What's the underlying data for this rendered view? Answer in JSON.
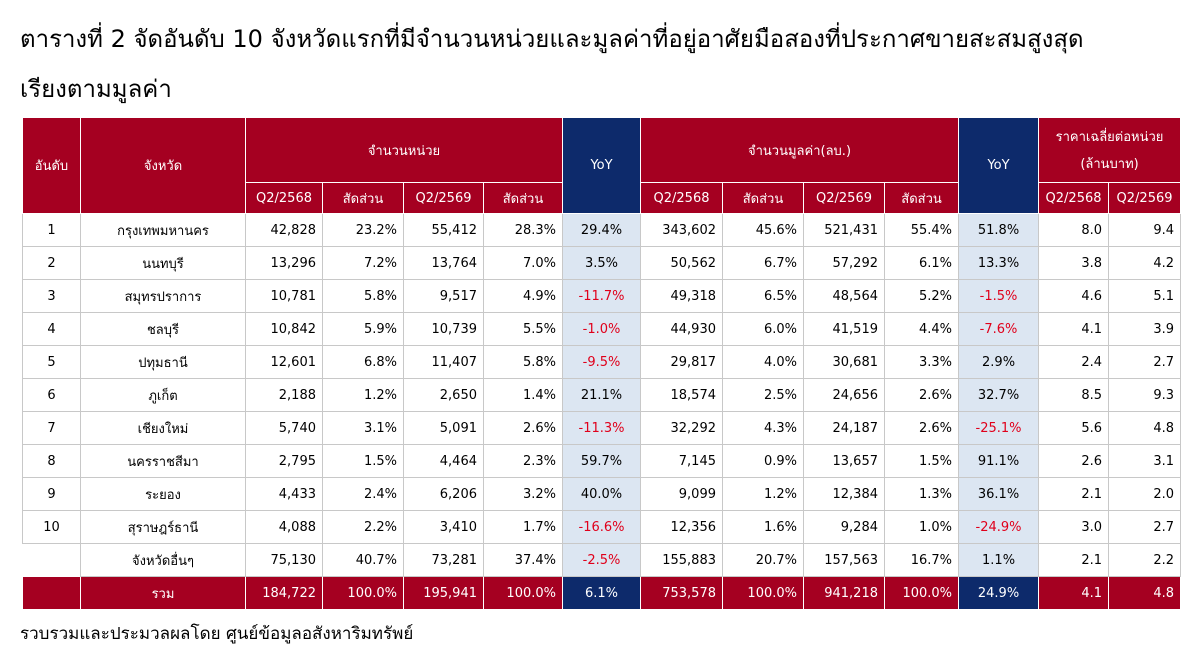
{
  "title_line1": "ตารางที่ 2 จัดอันดับ 10 จังหวัดแรกที่มีจำนวนหน่วยและมูลค่าที่อยู่อาศัยมือสองที่ประกาศขายสะสมสูงสุด",
  "title_line2": "เรียงตามมูลค่า",
  "table": {
    "header": {
      "rank": "อันดับ",
      "province": "จังหวัด",
      "units": "จำนวนหน่วย",
      "units_yoy": "YoY",
      "value": "จำนวนมูลค่า(ลบ.)",
      "value_yoy": "YoY",
      "price": [
        "ราคาเฉลี่ยต่อหน่วย",
        "(ล้านบาท)"
      ]
    },
    "subheader": [
      "Q2/2568",
      "สัดส่วน",
      "Q2/2569",
      "สัดส่วน",
      "Q2/2568",
      "สัดส่วน",
      "Q2/2569",
      "สัดส่วน",
      "Q2/2568",
      "Q2/2569"
    ],
    "rows": [
      [
        "1",
        "กรุงเทพมหานคร",
        "42,828",
        "23.2%",
        "55,412",
        "28.3%",
        "29.4%",
        "343,602",
        "45.6%",
        "521,431",
        "55.4%",
        "51.8%",
        "8.0",
        "9.4"
      ],
      [
        "2",
        "นนทบุรี",
        "13,296",
        "7.2%",
        "13,764",
        "7.0%",
        "3.5%",
        "50,562",
        "6.7%",
        "57,292",
        "6.1%",
        "13.3%",
        "3.8",
        "4.2"
      ],
      [
        "3",
        "สมุทรปราการ",
        "10,781",
        "5.8%",
        "9,517",
        "4.9%",
        "-11.7%",
        "49,318",
        "6.5%",
        "48,564",
        "5.2%",
        "-1.5%",
        "4.6",
        "5.1"
      ],
      [
        "4",
        "ชลบุรี",
        "10,842",
        "5.9%",
        "10,739",
        "5.5%",
        "-1.0%",
        "44,930",
        "6.0%",
        "41,519",
        "4.4%",
        "-7.6%",
        "4.1",
        "3.9"
      ],
      [
        "5",
        "ปทุมธานี",
        "12,601",
        "6.8%",
        "11,407",
        "5.8%",
        "-9.5%",
        "29,817",
        "4.0%",
        "30,681",
        "3.3%",
        "2.9%",
        "2.4",
        "2.7"
      ],
      [
        "6",
        "ภูเก็ต",
        "2,188",
        "1.2%",
        "2,650",
        "1.4%",
        "21.1%",
        "18,574",
        "2.5%",
        "24,656",
        "2.6%",
        "32.7%",
        "8.5",
        "9.3"
      ],
      [
        "7",
        "เชียงใหม่",
        "5,740",
        "3.1%",
        "5,091",
        "2.6%",
        "-11.3%",
        "32,292",
        "4.3%",
        "24,187",
        "2.6%",
        "-25.1%",
        "5.6",
        "4.8"
      ],
      [
        "8",
        "นครราชสีมา",
        "2,795",
        "1.5%",
        "4,464",
        "2.3%",
        "59.7%",
        "7,145",
        "0.9%",
        "13,657",
        "1.5%",
        "91.1%",
        "2.6",
        "3.1"
      ],
      [
        "9",
        "ระยอง",
        "4,433",
        "2.4%",
        "6,206",
        "3.2%",
        "40.0%",
        "9,099",
        "1.2%",
        "12,384",
        "1.3%",
        "36.1%",
        "2.1",
        "2.0"
      ],
      [
        "10",
        "สุราษฎร์ธานี",
        "4,088",
        "2.2%",
        "3,410",
        "1.7%",
        "-16.6%",
        "12,356",
        "1.6%",
        "9,284",
        "1.0%",
        "-24.9%",
        "3.0",
        "2.7"
      ],
      [
        null,
        "จังหวัดอื่นๆ",
        "75,130",
        "40.7%",
        "73,281",
        "37.4%",
        "-2.5%",
        "155,883",
        "20.7%",
        "157,563",
        "16.7%",
        "1.1%",
        "2.1",
        "2.2"
      ]
    ],
    "total": [
      null,
      "รวม",
      "184,722",
      "100.0%",
      "195,941",
      "100.0%",
      "6.1%",
      "753,578",
      "100.0%",
      "941,218",
      "100.0%",
      "24.9%",
      "4.1",
      "4.8"
    ]
  },
  "source": "รวบรวมและประมวลผลโดย ศูนย์ข้อมูลอสังหาริมทรัพย์"
}
